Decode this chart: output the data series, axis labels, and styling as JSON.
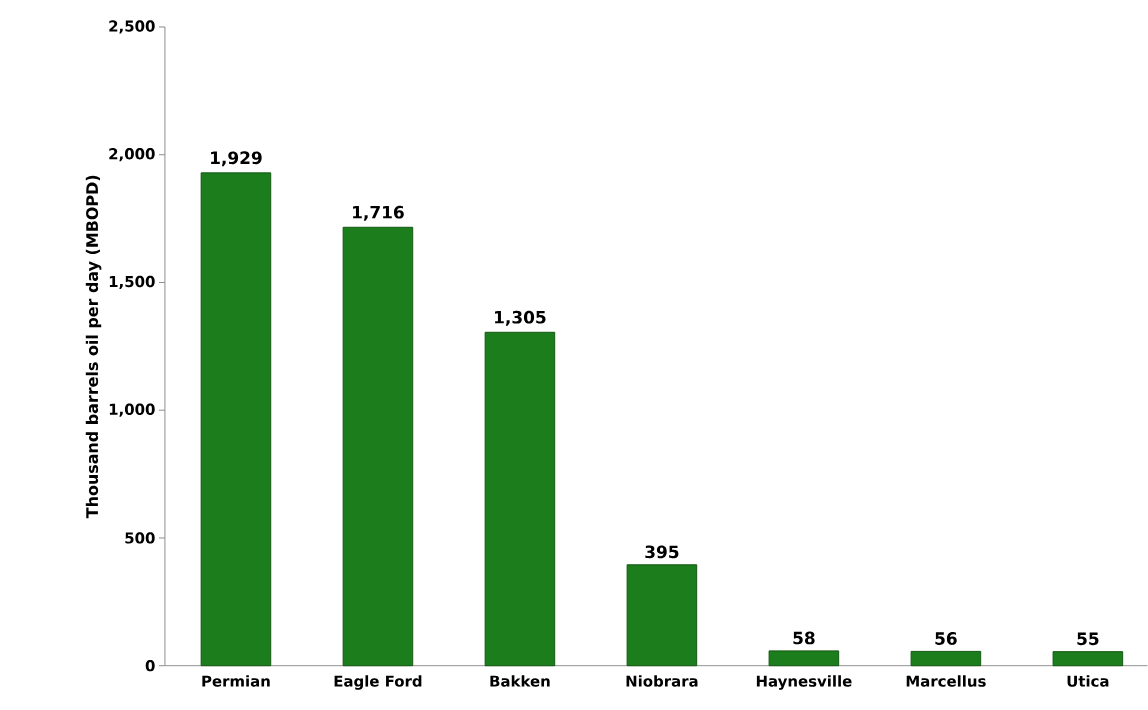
{
  "chart_data": {
    "type": "bar",
    "ylabel": "Thousand barrels oil per day (MBOPD)",
    "categories": [
      "Permian",
      "Eagle Ford",
      "Bakken",
      "Niobrara",
      "Haynesville",
      "Marcellus",
      "Utica"
    ],
    "values": [
      1929,
      1716,
      1305,
      395,
      58,
      56,
      55
    ],
    "value_labels": [
      "1,929",
      "1,716",
      "1,305",
      "395",
      "58",
      "56",
      "55"
    ],
    "color": "#1b7d1b",
    "ylim": [
      0,
      2500
    ],
    "yticks": [
      0,
      500,
      {
        "value": 1000,
        "label": "1,000"
      },
      {
        "value": 1500,
        "label": "1,500"
      },
      {
        "value": 2000,
        "label": "2,000"
      },
      {
        "value": 2500,
        "label": "2,500"
      }
    ],
    "grid": false
  }
}
